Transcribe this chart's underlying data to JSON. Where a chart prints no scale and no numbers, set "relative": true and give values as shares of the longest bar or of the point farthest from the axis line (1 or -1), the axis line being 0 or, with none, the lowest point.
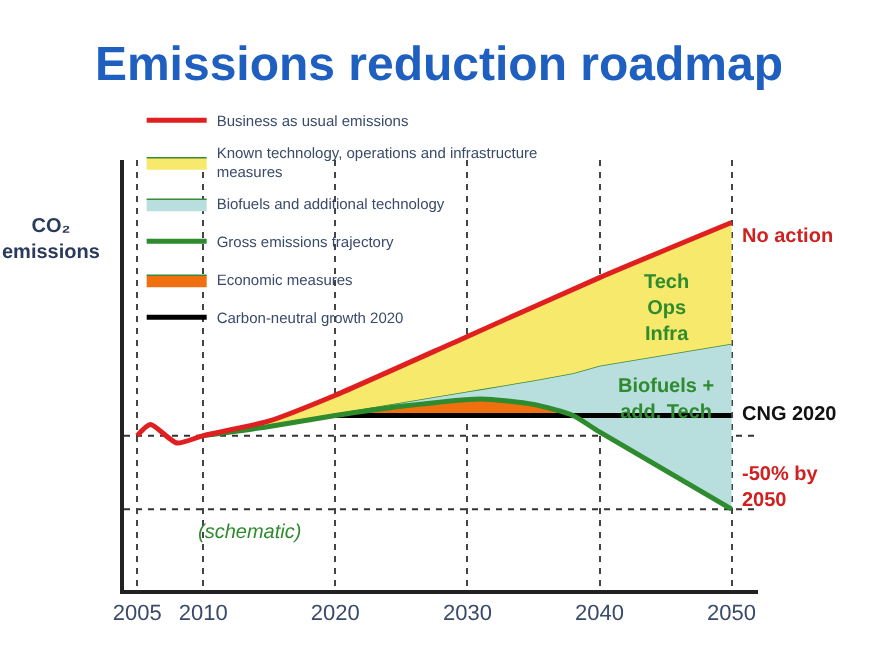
{
  "chart_data": {
    "type": "line",
    "title": "Emissions reduction roadmap",
    "ylabel": "CO₂\nemissions",
    "relative": true,
    "xlim": [
      2004,
      2052
    ],
    "xticks": [
      2005,
      2010,
      2020,
      2030,
      2040,
      2050
    ],
    "grid": "x",
    "legend": "top left",
    "tick_labels": "x",
    "series": [
      {
        "name": "Carbon-neutral growth 2020",
        "color": "#000000",
        "x": [
          2020,
          2050
        ],
        "values": [
          0.475,
          0.475
        ]
      },
      {
        "name": "Economic measures",
        "type": "area",
        "color": "#f07010",
        "x": [
          2020,
          2025,
          2031,
          2035,
          2038
        ],
        "values": [
          0.475,
          0.5,
          0.52,
          0.505,
          0.475
        ]
      },
      {
        "name": "Gross emissions trajectory",
        "color": "#2e8b2e",
        "x": [
          2010,
          2015,
          2020,
          2025,
          2031,
          2035,
          2038,
          2040,
          2050
        ],
        "values": [
          0.42,
          0.445,
          0.475,
          0.5,
          0.52,
          0.505,
          0.475,
          0.43,
          0.22
        ]
      },
      {
        "name": "Biofuels and additional technology",
        "type": "area",
        "color": "#b8dede",
        "x": [
          2010,
          2015,
          2020,
          2025,
          2030,
          2031,
          2035,
          2038,
          2040,
          2050
        ],
        "values": [
          0.42,
          0.45,
          0.48,
          0.51,
          0.54,
          0.546,
          0.57,
          0.59,
          0.61,
          0.67
        ]
      },
      {
        "name": "Known technology, operations and infrastructure\nmeasures",
        "type": "area",
        "color": "#f7e96b",
        "x": [
          2010,
          2015,
          2020,
          2025,
          2030,
          2031,
          2035,
          2038,
          2040,
          2050
        ],
        "values": [
          0.42,
          0.46,
          0.53,
          0.61,
          0.69,
          0.706,
          0.77,
          0.818,
          0.85,
          1
        ]
      },
      {
        "name": "Business as usual emissions",
        "color": "#e02020",
        "x": [
          2005,
          2006,
          2008,
          2010,
          2015,
          2020,
          2030,
          2040,
          2050
        ],
        "values": [
          0.42,
          0.45,
          0.4,
          0.42,
          0.46,
          0.53,
          0.69,
          0.85,
          1
        ]
      }
    ],
    "ref_lines": [
      {
        "axis": "y",
        "value": 0.42,
        "line_style": "dotted",
        "color": "#333333"
      },
      {
        "axis": "y",
        "value": 0.22,
        "line_style": "dotted",
        "color": "#333333"
      }
    ],
    "annotations": [
      "No action",
      "Tech\nOps\nInfra",
      "Biofuels +\nadd. Tech",
      "CNG 2020",
      "-50% by\n2050",
      "(schematic)"
    ]
  }
}
